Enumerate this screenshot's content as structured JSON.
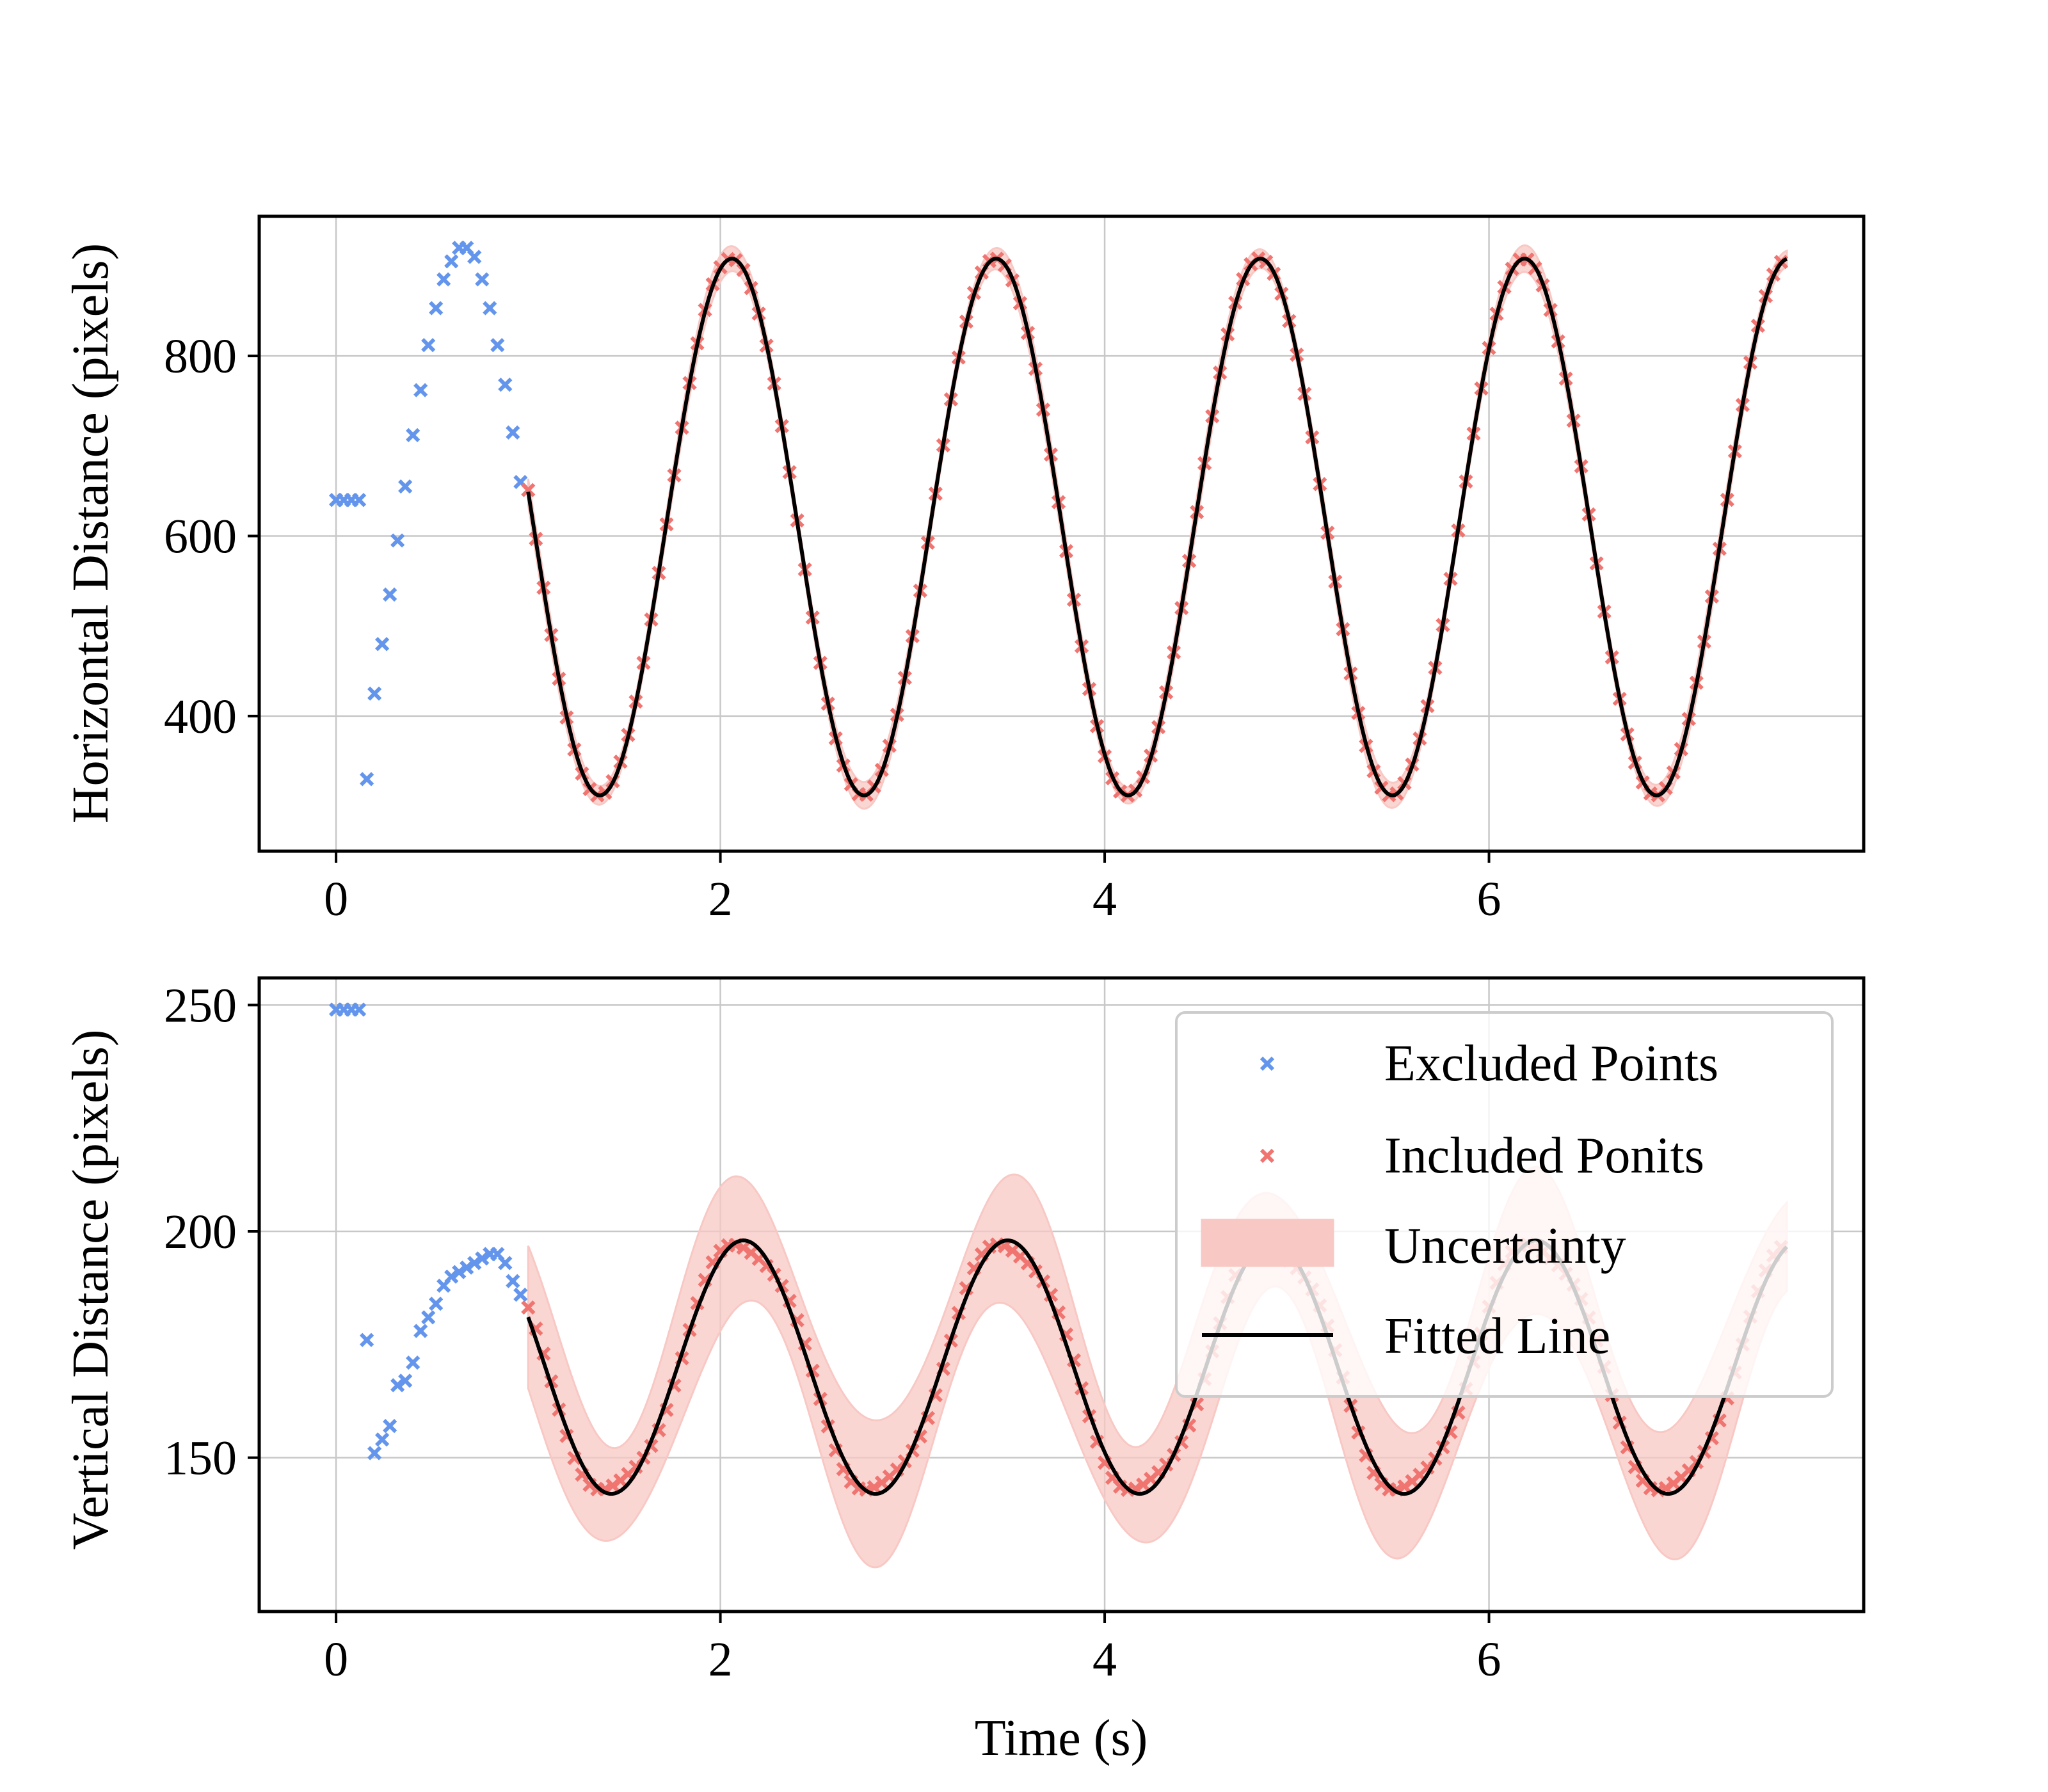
{
  "chart_data": [
    {
      "type": "scatter",
      "ylabel": "Horizontal Distance (pixels)",
      "xlabel": "",
      "xlim": [
        -0.4,
        7.95
      ],
      "ylim": [
        250,
        955
      ],
      "xticks": [
        0,
        2,
        4,
        6
      ],
      "yticks": [
        400,
        600,
        800
      ],
      "xtick_labels": [
        "0",
        "2",
        "4",
        "6"
      ],
      "ytick_labels": [
        "400",
        "600",
        "800"
      ],
      "grid": true,
      "legend": false,
      "excluded_points": {
        "x": [
          0.0,
          0.04,
          0.08,
          0.12,
          0.16,
          0.2,
          0.24,
          0.28,
          0.32,
          0.36,
          0.4,
          0.44,
          0.48,
          0.52,
          0.56,
          0.6,
          0.64,
          0.68,
          0.72,
          0.76,
          0.8,
          0.84,
          0.88,
          0.92,
          0.96
        ],
        "y": [
          640,
          640,
          640,
          640,
          330,
          425,
          480,
          535,
          595,
          655,
          712,
          762,
          812,
          853,
          885,
          905,
          920,
          920,
          910,
          885,
          853,
          812,
          768,
          715,
          660
        ]
      },
      "fit": {
        "model": "y = offset + amplitude * cos(2*pi*(x - t_peak)/period)",
        "x_range": [
          1.0,
          7.55
        ],
        "offset": 610,
        "amplitude": 298,
        "period": 1.375,
        "t_peak": 2.06,
        "point_spacing": 0.04,
        "uncertainty_band": 12
      }
    },
    {
      "type": "scatter",
      "ylabel": "Vertical Distance (pixels)",
      "xlabel": "Time (s)",
      "xlim": [
        -0.4,
        7.95
      ],
      "ylim": [
        116,
        256
      ],
      "xticks": [
        0,
        2,
        4,
        6
      ],
      "yticks": [
        150,
        200,
        250
      ],
      "xtick_labels": [
        "0",
        "2",
        "4",
        "6"
      ],
      "ytick_labels": [
        "150",
        "200",
        "250"
      ],
      "grid": true,
      "legend": true,
      "legend_position": "top-right",
      "excluded_points": {
        "x": [
          0.0,
          0.04,
          0.08,
          0.12,
          0.16,
          0.2,
          0.24,
          0.28,
          0.32,
          0.36,
          0.4,
          0.44,
          0.48,
          0.52,
          0.56,
          0.6,
          0.64,
          0.68,
          0.72,
          0.76,
          0.8,
          0.84,
          0.88,
          0.92,
          0.96
        ],
        "y": [
          249,
          249,
          249,
          249,
          176,
          151,
          154,
          157,
          166,
          167,
          171,
          178,
          181,
          184,
          188,
          190,
          191,
          192,
          193,
          194,
          195,
          195,
          193,
          189,
          186
        ]
      },
      "fit": {
        "model": "y = offset + amplitude * cos(2*pi*(x - t_peak)/period)",
        "x_range": [
          1.0,
          7.55
        ],
        "offset": 170,
        "amplitude": 28,
        "period": 1.375,
        "t_peak": 2.12,
        "point_spacing": 0.04,
        "uncertainty_band": 13
      }
    }
  ],
  "legend": {
    "items": [
      {
        "label": "Excluded Points",
        "kind": "marker",
        "color": "#6495ED"
      },
      {
        "label": "Included Ponits",
        "kind": "marker",
        "color": "#F07470"
      },
      {
        "label": "Uncertainty",
        "kind": "patch",
        "color": "#F8C8C4"
      },
      {
        "label": "Fitted Line",
        "kind": "line",
        "color": "#000000"
      }
    ]
  },
  "colors": {
    "excluded": "#6495ED",
    "included": "#F07470",
    "band": "#F8C8C4",
    "fit": "#000000",
    "grid": "#C8C8C8"
  }
}
